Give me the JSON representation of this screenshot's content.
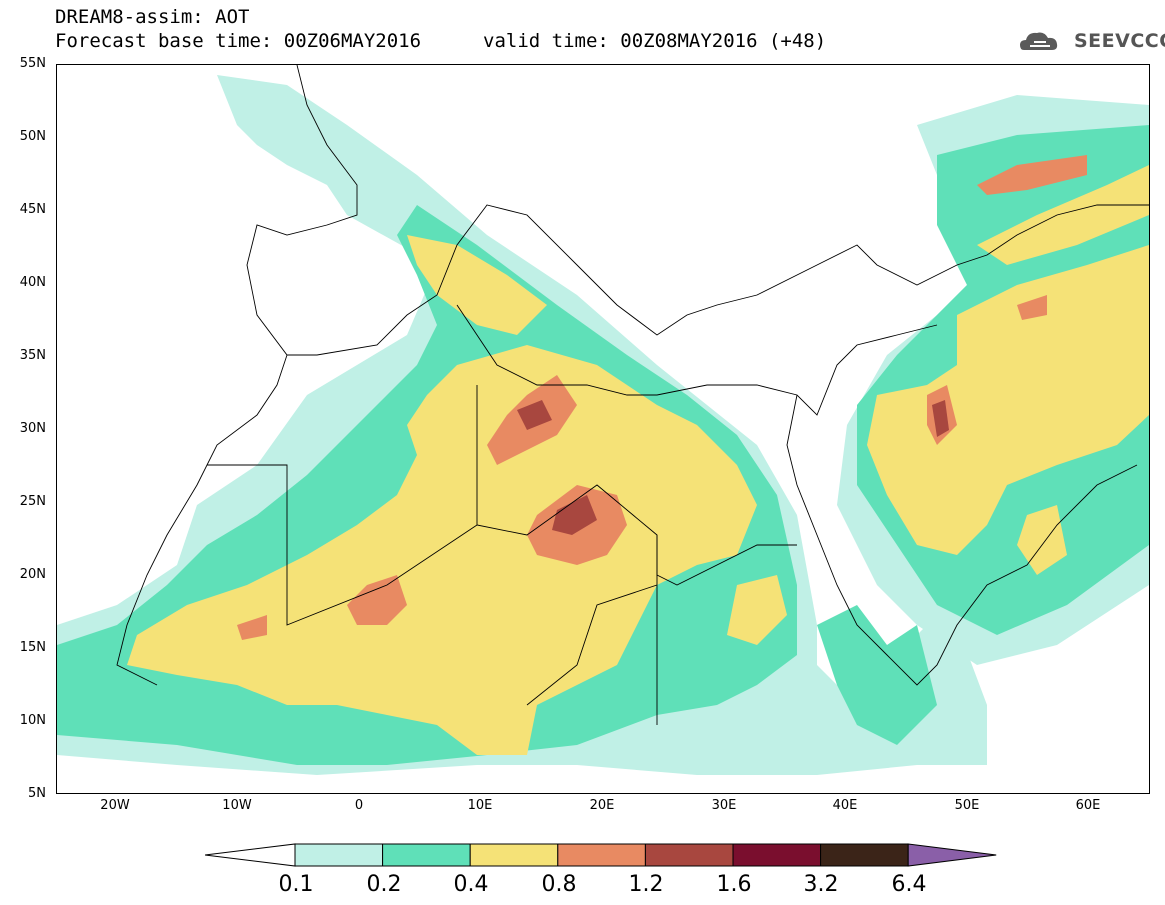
{
  "header": {
    "title": "DREAM8-assim: AOT",
    "base_time_label": "Forecast base time: 00Z06MAY2016",
    "valid_time_label": "valid time: 00Z08MAY2016 (+48)"
  },
  "logo": {
    "text": "SEEVCCC",
    "icon": "cloud-icon"
  },
  "map": {
    "variable": "AOT",
    "lat_range": [
      5,
      55
    ],
    "lon_range": [
      -25,
      65
    ],
    "lat_ticks": [
      "55N",
      "50N",
      "45N",
      "40N",
      "35N",
      "30N",
      "25N",
      "20N",
      "15N",
      "10N",
      "5N"
    ],
    "lon_ticks": [
      "20W",
      "10W",
      "0",
      "10E",
      "20E",
      "30E",
      "40E",
      "50E",
      "60E"
    ]
  },
  "colorbar": {
    "labels": [
      "0.1",
      "0.2",
      "0.4",
      "0.8",
      "1.2",
      "1.6",
      "3.2",
      "6.4"
    ],
    "colors": [
      "#ffffff",
      "#c0f0e6",
      "#5fe0b8",
      "#f5e277",
      "#e88a62",
      "#a8473f",
      "#7a0e2e",
      "#3b2418",
      "#8a5fa8"
    ]
  }
}
